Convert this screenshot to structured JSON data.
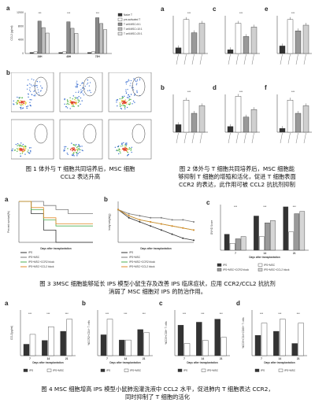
{
  "fig1": {
    "panel_a": "a",
    "panel_b": "b",
    "caption_line1": "图 1  体外与 T 细胞共同培养后，MSC 细胞",
    "caption_line2": "CCL2 表达升高",
    "chart_data": {
      "type": "bar",
      "ylabel": "CCL2 (pg/ml)",
      "categories": [
        "24H",
        "48H",
        "72H"
      ],
      "legend": [
        "Naive T",
        "pre-activated T",
        "T cell:MSC=5:1",
        "T cell:MSC=10:1",
        "T cell:MSC=20:1"
      ],
      "ylim": [
        0,
        12000
      ],
      "series": [
        {
          "name": "Naive T",
          "values": [
            300,
            300,
            300
          ]
        },
        {
          "name": "pre-activated T",
          "values": [
            500,
            500,
            500
          ]
        },
        {
          "name": "T cell:MSC=5:1",
          "values": [
            9500,
            9300,
            10500
          ]
        },
        {
          "name": "T cell:MSC=10:1",
          "values": [
            7600,
            7400,
            8800
          ]
        },
        {
          "name": "T cell:MSC=20:1",
          "values": [
            6000,
            5900,
            7000
          ]
        }
      ]
    }
  },
  "fig2": {
    "panels": [
      "a",
      "b",
      "c",
      "d",
      "e",
      "f"
    ],
    "caption_line1": "图 2  体外与 T 细胞共同培养后，MSC 细胞能",
    "caption_line2": "够抑制 T 细胞的增殖和活化，促进 T 细胞表面",
    "caption_line3": "CCR2 的表达，此作用可被 CCL2 抗抗剂抑制"
  },
  "fig3": {
    "panels": [
      "a",
      "b",
      "c"
    ],
    "a_ylabel": "Percent survival(%)",
    "a_xlabel": "Days after transplantation",
    "b_ylabel": "body weight(g)",
    "b_xlabel": "Days after transplantation",
    "c_ylabel": "GVHD Score",
    "c_xlabel": "Days after transplantation",
    "legend_a": [
      "IPS",
      "IPS+MSC",
      "IPS+MSC+CCR2 block",
      "IPS+MSC+CCL2 block"
    ],
    "legend_c": [
      "IPS",
      "IPS+MSC",
      "IPS+MSC+CCR2 block",
      "IPS+MSC+CCL2 block"
    ],
    "caption_line1": "图 3  3MSC 细胞能够延长 IPS 模型小鼠生存及改善 IPS 临床症状，应用 CCR2/CCL2 抗抗剂",
    "caption_line2": "消弱了 MSC 细胞对 IPS 的防治作用。",
    "chart_data": [
      {
        "type": "line",
        "x": [
          0,
          10,
          20,
          30,
          40,
          50,
          60
        ],
        "ylim": [
          0,
          100
        ],
        "series": [
          {
            "name": "IPS",
            "values": [
              100,
              70,
              30,
              0,
              0,
              0,
              0
            ]
          },
          {
            "name": "IPS+MSC",
            "values": [
              100,
              100,
              90,
              80,
              70,
              70,
              70
            ]
          },
          {
            "name": "IPS+MSC+CCR2 block",
            "values": [
              100,
              80,
              55,
              40,
              40,
              40,
              40
            ]
          },
          {
            "name": "IPS+MSC+CCL2 block",
            "values": [
              100,
              85,
              60,
              45,
              45,
              45,
              45
            ]
          }
        ]
      },
      {
        "type": "line",
        "x": [
          0,
          4,
          8,
          12,
          16,
          20,
          24,
          28
        ],
        "ylim": [
          15,
          25
        ],
        "series": [
          {
            "name": "IPS",
            "values": [
              23,
              21,
              20,
              19,
              18,
              17,
              16,
              15.5
            ]
          },
          {
            "name": "IPS+MSC",
            "values": [
              23,
              22,
              21.5,
              21,
              21,
              20.5,
              20.5,
              20
            ]
          },
          {
            "name": "IPS+MSC+CCR2 block",
            "values": [
              23,
              21.5,
              20.5,
              20,
              19.5,
              19,
              18.5,
              18
            ]
          },
          {
            "name": "IPS+MSC+CCL2 block",
            "values": [
              23,
              21.5,
              20.5,
              20,
              19.5,
              19,
              18.5,
              18
            ]
          }
        ]
      },
      {
        "type": "bar",
        "categories": [
          "7",
          "14",
          "21"
        ],
        "ylim": [
          0,
          10
        ],
        "series": [
          {
            "name": "IPS",
            "values": [
              3.5,
              7.5,
              9.5
            ]
          },
          {
            "name": "IPS+MSC",
            "values": [
              1.5,
              3,
              4
            ]
          },
          {
            "name": "IPS+MSC+CCR2 block",
            "values": [
              2.5,
              6,
              8
            ]
          },
          {
            "name": "IPS+MSC+CCL2 block",
            "values": [
              3,
              6.5,
              8.5
            ]
          }
        ]
      }
    ]
  },
  "fig4": {
    "panels": [
      "a",
      "b",
      "c",
      "d"
    ],
    "xlabel": "Days after transplantation",
    "legend": [
      "IPS",
      "IPS+MSC"
    ],
    "caption_line1": "图 4  MSC 细胞增高 IPS 模型小鼠肺泡灌洗液中 CCL2 水平，促进肺内 T 细胞表达 CCR2，",
    "caption_line2": "同时抑制了 T 细胞的活化",
    "chart_data": [
      {
        "type": "bar",
        "categories": [
          "7",
          "14",
          "21"
        ],
        "ylabel": "CCL2(pg/ml)",
        "series": [
          {
            "name": "IPS",
            "values": [
              150,
              200,
              320
            ]
          },
          {
            "name": "IPS+MSC",
            "values": [
              280,
              380,
              480
            ]
          }
        ]
      },
      {
        "type": "bar",
        "categories": [
          "7",
          "14",
          "21"
        ],
        "ylabel": "%CCR2+CD4+ T cells",
        "series": [
          {
            "name": "IPS",
            "values": [
              20,
              15,
              25
            ]
          },
          {
            "name": "IPS+MSC",
            "values": [
              35,
              15,
              22
            ]
          }
        ]
      },
      {
        "type": "bar",
        "categories": [
          "7",
          "14",
          "21"
        ],
        "ylabel": "%CD3+CD8+ T cells",
        "series": [
          {
            "name": "IPS",
            "values": [
              50,
              55,
              60
            ]
          },
          {
            "name": "IPS+MSC",
            "values": [
              20,
              25,
              30
            ]
          }
        ]
      },
      {
        "type": "bar",
        "categories": [
          "7",
          "14",
          "21"
        ],
        "ylabel": "%CD3+CD4+CD69+ T cells",
        "series": [
          {
            "name": "IPS",
            "values": [
              25,
              30,
              15
            ]
          },
          {
            "name": "IPS+MSC",
            "values": [
              40,
              45,
              40
            ]
          }
        ]
      }
    ]
  }
}
